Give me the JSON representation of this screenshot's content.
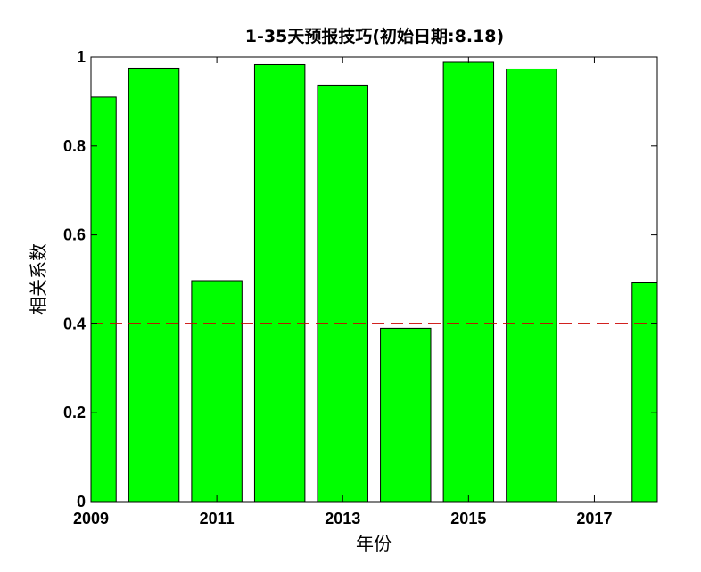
{
  "chart_data": {
    "type": "bar",
    "title": "1-35天预报技巧(初始日期:8.18)",
    "xlabel": "年份",
    "ylabel": "相关系数",
    "x": [
      2009,
      2010,
      2011,
      2012,
      2013,
      2014,
      2015,
      2016,
      2017,
      2018
    ],
    "values": [
      0.91,
      0.975,
      0.497,
      0.983,
      0.937,
      0.39,
      0.988,
      0.973,
      null,
      0.492
    ],
    "xlim": [
      2009,
      2018
    ],
    "ylim": [
      0,
      1
    ],
    "xticks": [
      "2009",
      "2011",
      "2013",
      "2015",
      "2017"
    ],
    "yticks": [
      "0",
      "0.2",
      "0.4",
      "0.6",
      "0.8",
      "1"
    ],
    "reference_line": {
      "y": 0.4,
      "style": "dashed",
      "color": "#cc0000"
    },
    "bar_color": "#00ff00",
    "bar_edge_color": "#000000",
    "grid": false,
    "legend": false
  }
}
